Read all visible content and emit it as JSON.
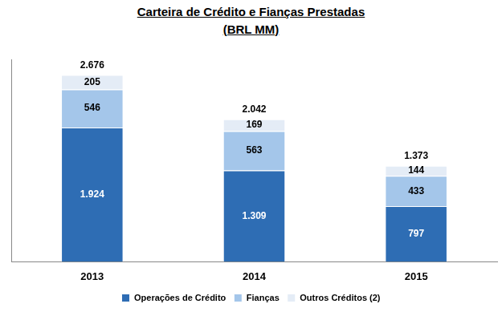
{
  "chart_data": {
    "type": "bar",
    "title": "Carteira de Crédito e Fianças Prestadas",
    "subtitle": "(BRL MM)",
    "categories": [
      "2013",
      "2014",
      "2015"
    ],
    "series": [
      {
        "name": "Operações de Crédito",
        "color": "#2e6db4",
        "values": [
          1924,
          1309,
          797
        ],
        "value_labels": [
          "1.924",
          "1.309",
          "797"
        ]
      },
      {
        "name": "Fianças",
        "color": "#a4c6ea",
        "values": [
          546,
          563,
          433
        ],
        "value_labels": [
          "546",
          "563",
          "433"
        ]
      },
      {
        "name": "Outros Créditos (2)",
        "color": "#e4ecf6",
        "values": [
          205,
          169,
          144
        ],
        "value_labels": [
          "205",
          "169",
          "144"
        ]
      }
    ],
    "totals": [
      2676,
      2042,
      1373
    ],
    "total_labels": [
      "2.676",
      "2.042",
      "1.373"
    ],
    "ylim": [
      0,
      2900
    ],
    "stacked": true,
    "data_labels": true,
    "grid": false,
    "legend": "bottom",
    "tick_labels": "x"
  }
}
